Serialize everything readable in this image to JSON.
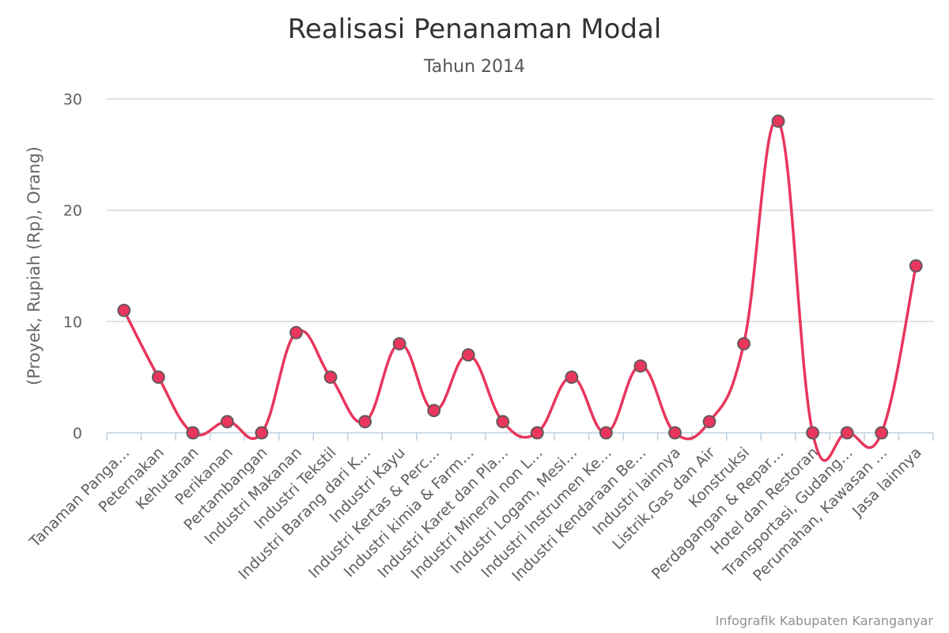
{
  "chart_data": {
    "type": "line",
    "title": "Realisasi Penanaman Modal",
    "subtitle": "Tahun 2014",
    "ylabel": "(Proyek, Rupiah (Rp), Orang)",
    "xlabel": "",
    "ylim": [
      0,
      30
    ],
    "yticks": [
      0,
      10,
      20,
      30
    ],
    "grid": true,
    "smooth": true,
    "categories": [
      "Tanaman Panga…",
      "Peternakan",
      "Kehutanan",
      "Perikanan",
      "Pertambangan",
      "Industri Makanan",
      "Industri Tekstil",
      "Industri Barang dari K…",
      "Industri Kayu",
      "Industri Kertas & Perc…",
      "Industri kimia & Farm…",
      "Industri Karet dan Pla…",
      "Industri Mineral non L…",
      "Industri Logam, Mesi…",
      "Industri Instrumen Ke…",
      "Industri Kendaraan Be…",
      "Industri lainnya",
      "Listrik,Gas dan Air",
      "Konstruksi",
      "Perdagangan & Repar…",
      "Hotel dan Restoran",
      "Transportasi, Gudang…",
      "Perumahan, Kawasan …",
      "Jasa lainnya"
    ],
    "series": [
      {
        "color": "#e8365d",
        "values": [
          11,
          5,
          0,
          1,
          0,
          9,
          5,
          1,
          8,
          2,
          7,
          1,
          0,
          5,
          0,
          6,
          0,
          1,
          8,
          28,
          0,
          0,
          0,
          15
        ]
      }
    ]
  },
  "credit": "Infografik Kabupaten Karanganyar"
}
